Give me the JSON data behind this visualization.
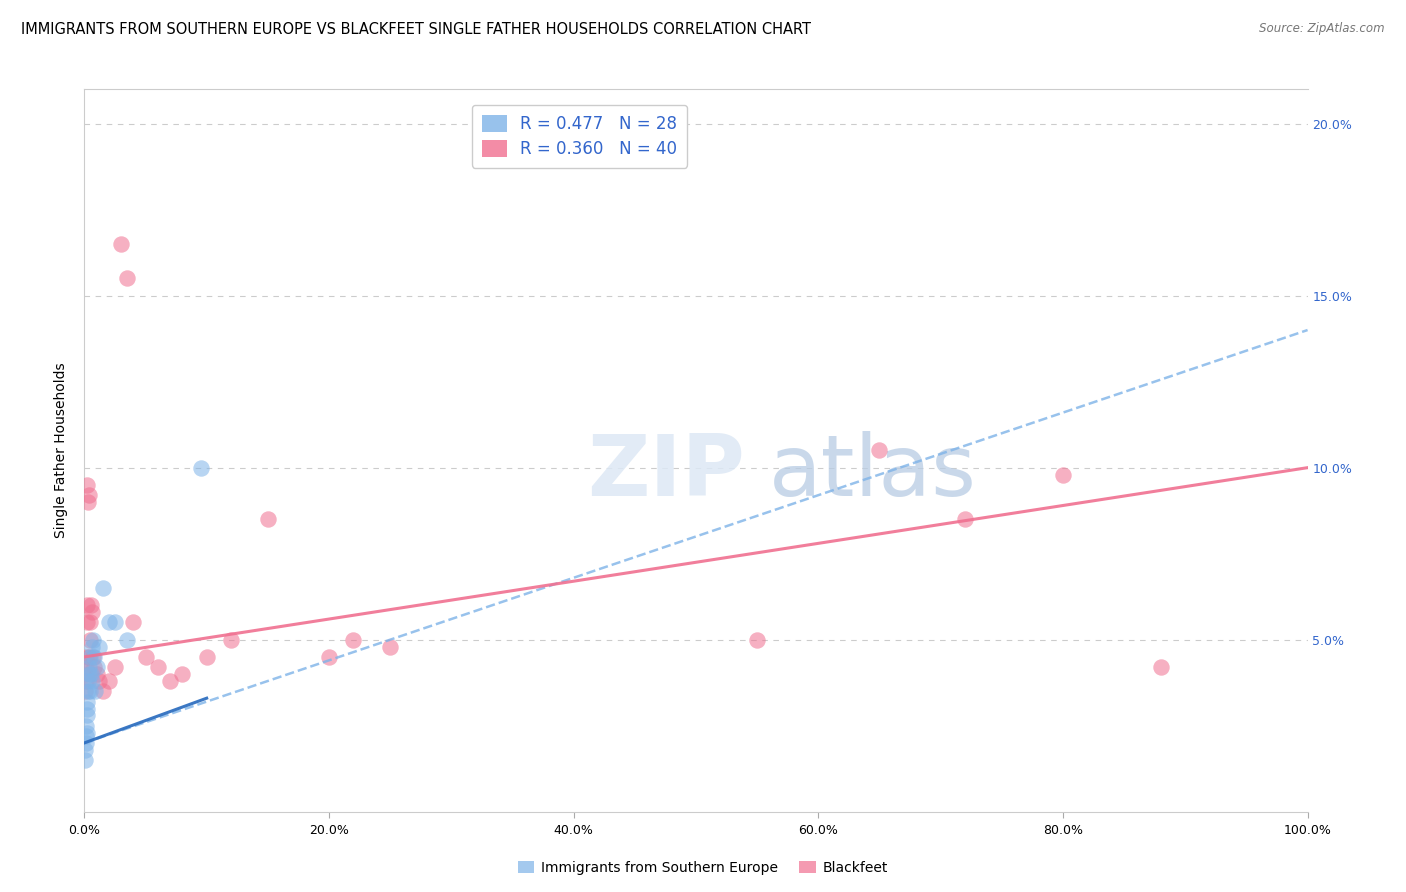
{
  "title": "IMMIGRANTS FROM SOUTHERN EUROPE VS BLACKFEET SINGLE FATHER HOUSEHOLDS CORRELATION CHART",
  "source": "Source: ZipAtlas.com",
  "ylabel": "Single Father Households",
  "series1_label": "Immigrants from Southern Europe",
  "series2_label": "Blackfeet",
  "series1_color": "#7EB3E8",
  "series1_solid_color": "#3070C0",
  "series2_color": "#F07090",
  "background_color": "#ffffff",
  "grid_color": "#cccccc",
  "title_fontsize": 10.5,
  "axis_label_fontsize": 10,
  "tick_fontsize": 9,
  "right_tick_color": "#3366CC",
  "xlim": [
    0,
    100
  ],
  "ylim": [
    0,
    21
  ],
  "xticks": [
    0,
    20,
    40,
    60,
    80,
    100
  ],
  "xticklabels": [
    "0.0%",
    "20.0%",
    "40.0%",
    "60.0%",
    "80.0%",
    "100.0%"
  ],
  "yticks_right": [
    0,
    5,
    10,
    15,
    20
  ],
  "yticklabels_right": [
    "",
    "5.0%",
    "10.0%",
    "15.0%",
    "20.0%"
  ],
  "trend1_x0": 0,
  "trend1_y0": 2.0,
  "trend1_x1": 100,
  "trend1_y1": 14.0,
  "trend1_solid_x0": 0,
  "trend1_solid_y0": 2.0,
  "trend1_solid_x1": 10,
  "trend1_solid_y1": 3.3,
  "trend2_x0": 0,
  "trend2_y0": 4.5,
  "trend2_x1": 100,
  "trend2_y1": 10.0,
  "series1_x": [
    0.05,
    0.08,
    0.1,
    0.12,
    0.15,
    0.18,
    0.2,
    0.22,
    0.25,
    0.28,
    0.3,
    0.35,
    0.4,
    0.45,
    0.5,
    0.55,
    0.6,
    0.65,
    0.7,
    0.8,
    0.9,
    1.0,
    1.2,
    1.5,
    2.0,
    2.5,
    3.5,
    9.5
  ],
  "series1_y": [
    1.5,
    1.8,
    2.0,
    2.2,
    2.5,
    2.3,
    3.0,
    2.8,
    3.2,
    3.5,
    3.8,
    4.0,
    4.2,
    3.5,
    4.5,
    4.0,
    4.8,
    3.8,
    5.0,
    4.5,
    3.5,
    4.2,
    4.8,
    6.5,
    5.5,
    5.5,
    5.0,
    10.0
  ],
  "series2_x": [
    0.05,
    0.08,
    0.1,
    0.12,
    0.15,
    0.18,
    0.2,
    0.25,
    0.3,
    0.35,
    0.4,
    0.45,
    0.5,
    0.55,
    0.6,
    0.7,
    0.8,
    1.0,
    1.2,
    1.5,
    2.0,
    2.5,
    3.0,
    3.5,
    4.0,
    5.0,
    6.0,
    7.0,
    8.0,
    10.0,
    12.0,
    15.0,
    20.0,
    22.0,
    25.0,
    55.0,
    65.0,
    72.0,
    80.0,
    88.0
  ],
  "series2_y": [
    3.5,
    4.0,
    4.2,
    3.8,
    4.5,
    5.5,
    6.0,
    9.5,
    9.0,
    9.2,
    4.5,
    5.0,
    5.5,
    6.0,
    5.8,
    4.5,
    4.2,
    4.0,
    3.8,
    3.5,
    3.8,
    4.2,
    16.5,
    15.5,
    5.5,
    4.5,
    4.2,
    3.8,
    4.0,
    4.5,
    5.0,
    8.5,
    4.5,
    5.0,
    4.8,
    5.0,
    10.5,
    8.5,
    9.8,
    4.2
  ]
}
